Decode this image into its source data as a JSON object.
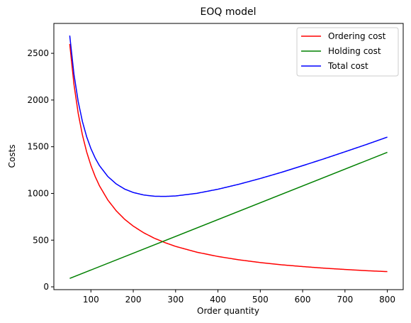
{
  "chart_data": {
    "type": "line",
    "title": "EOQ model",
    "xlabel": "Order quantity",
    "ylabel": "Costs",
    "xlim": [
      12.5,
      837.5
    ],
    "ylim": [
      -30,
      2820
    ],
    "xticks": [
      100,
      200,
      300,
      400,
      500,
      600,
      700,
      800
    ],
    "yticks": [
      0,
      500,
      1000,
      1500,
      2000,
      2500
    ],
    "grid": false,
    "legend_position": "top-right",
    "series": [
      {
        "name": "Ordering cost",
        "color": "#ff0000",
        "x": [
          50,
          60,
          70,
          80,
          90,
          100,
          110,
          120,
          140,
          160,
          180,
          200,
          225,
          250,
          275,
          300,
          350,
          400,
          450,
          500,
          550,
          600,
          650,
          700,
          750,
          800
        ],
        "y": [
          2600,
          2167,
          1857,
          1625,
          1444,
          1300,
          1182,
          1083,
          929,
          813,
          722,
          650,
          578,
          520,
          473,
          433,
          371,
          325,
          289,
          260,
          236,
          217,
          200,
          186,
          173,
          163
        ]
      },
      {
        "name": "Holding cost",
        "color": "#008000",
        "x": [
          50,
          800
        ],
        "y": [
          90,
          1440
        ]
      },
      {
        "name": "Total cost",
        "color": "#0000ff",
        "x": [
          50,
          60,
          70,
          80,
          90,
          100,
          110,
          120,
          140,
          160,
          180,
          200,
          225,
          250,
          275,
          300,
          350,
          400,
          450,
          500,
          550,
          600,
          650,
          700,
          750,
          800
        ],
        "y": [
          2690,
          2275,
          1983,
          1769,
          1606,
          1480,
          1380,
          1299,
          1181,
          1101,
          1046,
          1010,
          983,
          970,
          968,
          973,
          1001,
          1045,
          1099,
          1160,
          1226,
          1297,
          1370,
          1446,
          1523,
          1603
        ]
      }
    ]
  }
}
